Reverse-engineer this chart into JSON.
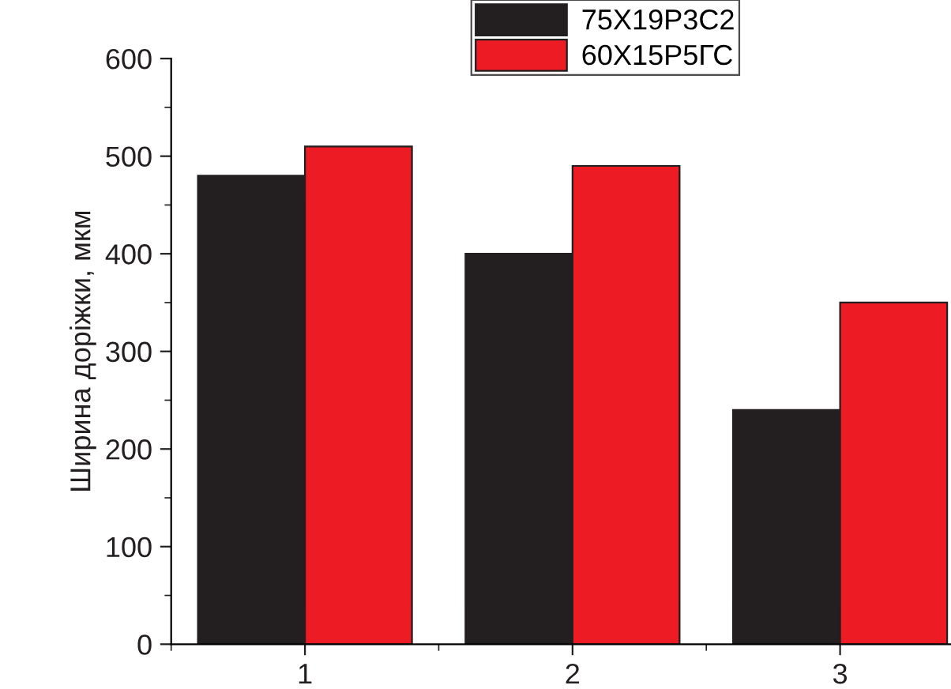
{
  "chart_data": {
    "type": "bar",
    "ylabel": "Ширина доріжки, мкм",
    "categories": [
      "1",
      "2",
      "3"
    ],
    "series": [
      {
        "name": "75Х19Р3С2",
        "color": "#231f20",
        "values": [
          480,
          400,
          240
        ]
      },
      {
        "name": "60Х15Р5ГС",
        "color": "#ed1c24",
        "values": [
          510,
          490,
          350
        ]
      }
    ],
    "ylim": [
      0,
      600
    ],
    "yticks": [
      0,
      100,
      200,
      300,
      400,
      500,
      600
    ],
    "legend": "top",
    "grid": false
  }
}
